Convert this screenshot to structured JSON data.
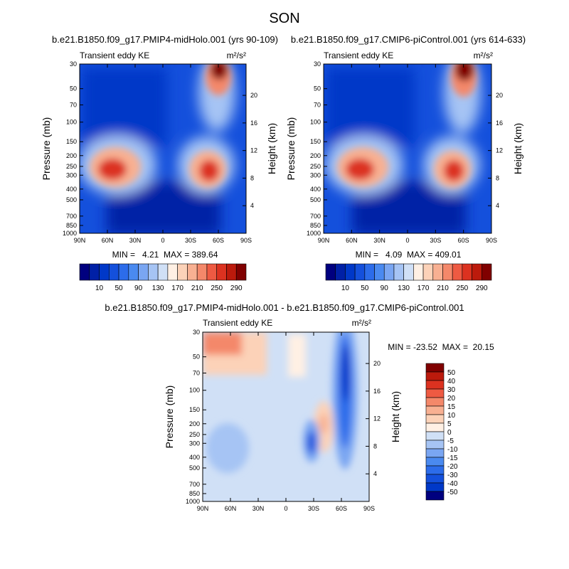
{
  "figure": {
    "title": "SON"
  },
  "chart_data": [
    {
      "type": "heatmap",
      "title": "b.e21.B1850.f09_g17.PMIP4-midHolo.001 (yrs 90-109)",
      "left_label": "Transient eddy KE",
      "units_label": "m²/s²",
      "xlabel": "",
      "ylabel": "Pressure (mb)",
      "y2label": "Height (km)",
      "x_ticks": [
        "90N",
        "60N",
        "30N",
        "0",
        "30S",
        "60S",
        "90S"
      ],
      "x_tick_values": [
        90,
        60,
        30,
        0,
        -30,
        -60,
        -90
      ],
      "y_ticks": [
        "30",
        "50",
        "70",
        "100",
        "150",
        "200",
        "250",
        "300",
        "400",
        "500",
        "700",
        "850",
        "1000"
      ],
      "y_tick_values": [
        30,
        50,
        70,
        100,
        150,
        200,
        250,
        300,
        400,
        500,
        700,
        850,
        1000
      ],
      "y2_ticks": [
        "20",
        "16",
        "12",
        "8",
        "4"
      ],
      "y2_tick_values": [
        20,
        16,
        12,
        8,
        4
      ],
      "ylim": [
        1000,
        30
      ],
      "xlim": [
        90,
        -90
      ],
      "stats": "MIN =   4.21  MAX = 389.64",
      "min": 4.21,
      "max": 389.64,
      "features": [
        {
          "lat": 42,
          "p": 240,
          "value": 300,
          "description": "NH jet-level eddy KE maximum"
        },
        {
          "lat": -50,
          "p": 270,
          "value": 280,
          "description": "SH jet-level eddy KE maximum"
        },
        {
          "lat": -60,
          "p": 30,
          "value": 320,
          "description": "SH stratospheric eddy KE maximum"
        }
      ]
    },
    {
      "type": "heatmap",
      "title": "b.e21.B1850.f09_g17.CMIP6-piControl.001 (yrs 614-633)",
      "left_label": "Transient eddy KE",
      "units_label": "m²/s²",
      "xlabel": "",
      "ylabel": "Pressure (mb)",
      "y2label": "Height (km)",
      "x_ticks": [
        "90N",
        "60N",
        "30N",
        "0",
        "30S",
        "60S",
        "90S"
      ],
      "x_tick_values": [
        90,
        60,
        30,
        0,
        -30,
        -60,
        -90
      ],
      "y_ticks": [
        "30",
        "50",
        "70",
        "100",
        "150",
        "200",
        "250",
        "300",
        "400",
        "500",
        "700",
        "850",
        "1000"
      ],
      "y_tick_values": [
        30,
        50,
        70,
        100,
        150,
        200,
        250,
        300,
        400,
        500,
        700,
        850,
        1000
      ],
      "y2_ticks": [
        "20",
        "16",
        "12",
        "8",
        "4"
      ],
      "y2_tick_values": [
        20,
        16,
        12,
        8,
        4
      ],
      "ylim": [
        1000,
        30
      ],
      "xlim": [
        90,
        -90
      ],
      "stats": "MIN =   4.09  MAX = 409.01",
      "min": 4.09,
      "max": 409.01,
      "features": [
        {
          "lat": 42,
          "p": 240,
          "value": 295,
          "description": "NH jet-level eddy KE maximum"
        },
        {
          "lat": -50,
          "p": 270,
          "value": 285,
          "description": "SH jet-level eddy KE maximum"
        },
        {
          "lat": -60,
          "p": 30,
          "value": 330,
          "description": "SH stratospheric eddy KE maximum"
        }
      ]
    },
    {
      "type": "heatmap",
      "title": "b.e21.B1850.f09_g17.PMIP4-midHolo.001 - b.e21.B1850.f09_g17.CMIP6-piControl.001",
      "left_label": "Transient eddy KE",
      "units_label": "m²/s²",
      "xlabel": "",
      "ylabel": "Pressure (mb)",
      "y2label": "Height (km)",
      "x_ticks": [
        "90N",
        "60N",
        "30N",
        "0",
        "30S",
        "60S",
        "90S"
      ],
      "x_tick_values": [
        90,
        60,
        30,
        0,
        -30,
        -60,
        -90
      ],
      "y_ticks": [
        "30",
        "50",
        "70",
        "100",
        "150",
        "200",
        "250",
        "300",
        "400",
        "500",
        "700",
        "850",
        "1000"
      ],
      "y_tick_values": [
        30,
        50,
        70,
        100,
        150,
        200,
        250,
        300,
        400,
        500,
        700,
        850,
        1000
      ],
      "y2_ticks": [
        "20",
        "16",
        "12",
        "8",
        "4"
      ],
      "y2_tick_values": [
        20,
        16,
        12,
        8,
        4
      ],
      "ylim": [
        1000,
        30
      ],
      "xlim": [
        90,
        -90
      ],
      "stats": "MIN = -23.52  MAX =  20.15",
      "min": -23.52,
      "max": 20.15,
      "features": [
        {
          "lat": 75,
          "p": 40,
          "value": 15,
          "description": "positive difference, NH high-latitude stratosphere"
        },
        {
          "lat": -33,
          "p": 220,
          "value": -20,
          "description": "negative difference near 30S"
        },
        {
          "lat": -42,
          "p": 190,
          "value": 15,
          "description": "positive difference near 40S"
        },
        {
          "lat": -57,
          "p": 200,
          "value": -23,
          "description": "negative difference band near 60S"
        }
      ]
    }
  ],
  "colorbars": [
    {
      "orientation": "horizontal",
      "labels": [
        "10",
        "50",
        "90",
        "130",
        "170",
        "210",
        "250",
        "290"
      ],
      "colors": [
        "#00007f",
        "#0020a6",
        "#0038c8",
        "#1450dc",
        "#2c6cea",
        "#4a8af0",
        "#7aa6f2",
        "#a6c4f4",
        "#d0e0f6",
        "#fff0e4",
        "#fcd2b8",
        "#f8b092",
        "#f4886a",
        "#ee5a42",
        "#dc3220",
        "#bc1a0c",
        "#800000"
      ]
    },
    {
      "orientation": "horizontal",
      "labels": [
        "10",
        "50",
        "90",
        "130",
        "170",
        "210",
        "250",
        "290"
      ],
      "colors": [
        "#00007f",
        "#0020a6",
        "#0038c8",
        "#1450dc",
        "#2c6cea",
        "#4a8af0",
        "#7aa6f2",
        "#a6c4f4",
        "#d0e0f6",
        "#fff0e4",
        "#fcd2b8",
        "#f8b092",
        "#f4886a",
        "#ee5a42",
        "#dc3220",
        "#bc1a0c",
        "#800000"
      ]
    },
    {
      "orientation": "vertical",
      "labels": [
        "50",
        "40",
        "30",
        "20",
        "15",
        "10",
        "5",
        "0",
        "-5",
        "-10",
        "-15",
        "-20",
        "-30",
        "-40",
        "-50"
      ],
      "colors": [
        "#800000",
        "#bc1a0c",
        "#dc3220",
        "#ee5a42",
        "#f4886a",
        "#f8b092",
        "#fcd2b8",
        "#fff0e4",
        "#d0e0f6",
        "#a6c4f4",
        "#7aa6f2",
        "#4a8af0",
        "#2c6cea",
        "#1450dc",
        "#0038c8",
        "#00007f"
      ]
    }
  ]
}
